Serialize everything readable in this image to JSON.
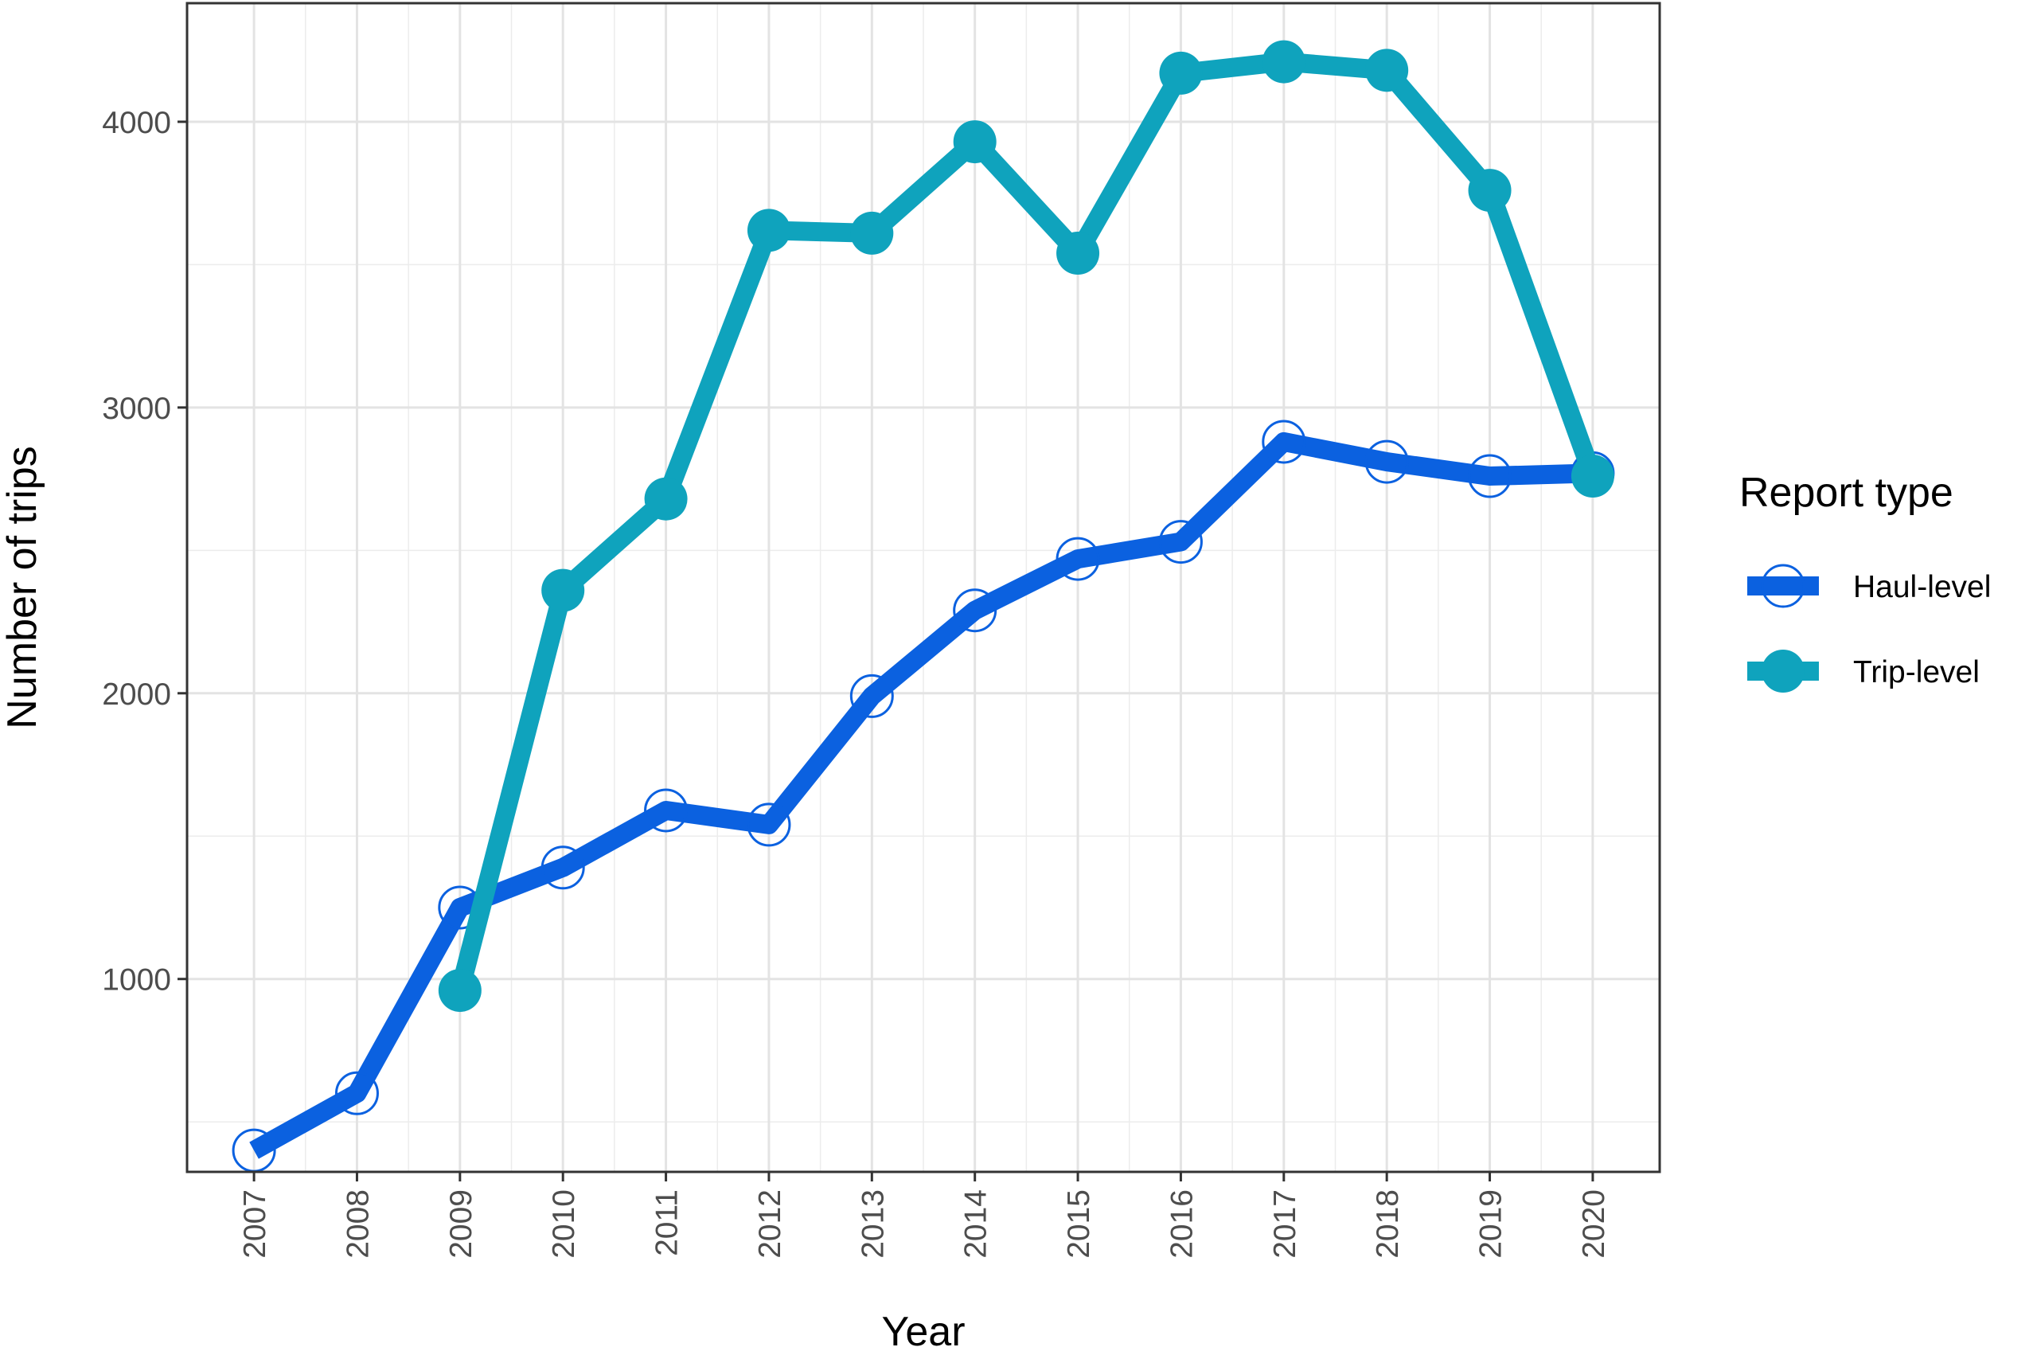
{
  "chart_data": {
    "type": "line",
    "xlabel": "Year",
    "ylabel": "Number of trips",
    "x": [
      "2007",
      "2008",
      "2009",
      "2010",
      "2011",
      "2012",
      "2013",
      "2014",
      "2015",
      "2016",
      "2017",
      "2018",
      "2019",
      "2020"
    ],
    "xlim": [
      2006.35,
      2020.65
    ],
    "ylim": [
      325,
      4415
    ],
    "yticks": [
      1000,
      2000,
      3000,
      4000
    ],
    "yticks_labels": [
      "1000",
      "2000",
      "3000",
      "4000"
    ],
    "grid": true,
    "legend": {
      "title": "Report type",
      "placement": "right"
    },
    "series": [
      {
        "name": "Haul-level",
        "color": "#0b61e0",
        "marker": "open-circle",
        "x": [
          "2007",
          "2008",
          "2009",
          "2010",
          "2011",
          "2012",
          "2013",
          "2014",
          "2015",
          "2016",
          "2017",
          "2018",
          "2019",
          "2020"
        ],
        "values": [
          400,
          600,
          1250,
          1390,
          1590,
          1540,
          1990,
          2290,
          2470,
          2530,
          2880,
          2810,
          2760,
          2770
        ]
      },
      {
        "name": "Trip-level",
        "color": "#0fa3bd",
        "marker": "filled-circle",
        "x": [
          "2009",
          "2010",
          "2011",
          "2012",
          "2013",
          "2014",
          "2015",
          "2016",
          "2017",
          "2018",
          "2019",
          "2020"
        ],
        "values": [
          960,
          2360,
          2680,
          3620,
          3610,
          3930,
          3540,
          4170,
          4210,
          4180,
          3760,
          2760
        ]
      }
    ]
  }
}
